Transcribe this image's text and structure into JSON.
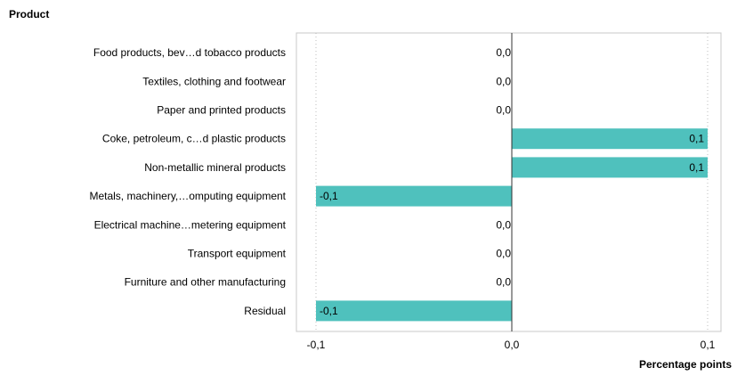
{
  "chart_data": {
    "type": "bar",
    "orientation": "horizontal",
    "title": "Product",
    "xlabel": "Percentage points",
    "categories": [
      "Food products, bev…d tobacco products",
      "Textiles, clothing and footwear",
      "Paper and printed products",
      "Coke, petroleum, c…d plastic products",
      "Non-metallic mineral products",
      "Metals, machinery,…omputing equipment",
      "Electrical machine…metering equipment",
      "Transport equipment",
      "Furniture and other manufacturing",
      "Residual"
    ],
    "values": [
      0.0,
      0.0,
      0.0,
      0.1,
      0.1,
      -0.1,
      0.0,
      0.0,
      0.0,
      -0.1
    ],
    "value_labels": [
      "0,0",
      "0,0",
      "0,0",
      "0,1",
      "0,1",
      "-0,1",
      "0,0",
      "0,0",
      "0,0",
      "-0,1"
    ],
    "xlim": [
      -0.1,
      0.1
    ],
    "xticks": [
      -0.1,
      0.0,
      0.1
    ],
    "xtick_labels": [
      "-0,1",
      "0,0",
      "0,1"
    ],
    "grid": "vertical dotted",
    "bar_color": "#4fc1bd"
  }
}
